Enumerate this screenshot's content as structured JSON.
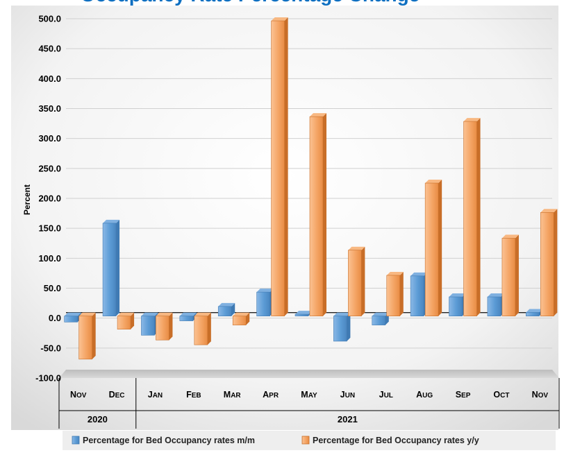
{
  "chart_data": {
    "type": "bar",
    "title": "Occupancy Rate Percentage Change",
    "ylabel": "Percent",
    "xlabel": "",
    "ylim": [
      -100,
      500
    ],
    "yticks": [
      "-100.0",
      "-50.0",
      "0.0",
      "50.0",
      "100.0",
      "150.0",
      "200.0",
      "250.0",
      "300.0",
      "350.0",
      "400.0",
      "450.0",
      "500.0"
    ],
    "categories": [
      "Nov",
      "Dec",
      "Jan",
      "Feb",
      "Mar",
      "Apr",
      "May",
      "Jun",
      "Jul",
      "Aug",
      "Sep",
      "Oct",
      "Nov"
    ],
    "years": [
      {
        "label": "2020",
        "count": 2
      },
      {
        "label": "2021",
        "count": 11
      }
    ],
    "series": [
      {
        "name": "Percentage for Bed Occupancy rates m/m",
        "color": "#5b9bd5",
        "values": [
          -10,
          155,
          -32,
          -8,
          16,
          40,
          3,
          -42,
          -15,
          67,
          32,
          32,
          6
        ]
      },
      {
        "name": "Percentage for Bed Occupancy rates y/y",
        "color": "#f4a464",
        "values": [
          -72,
          -22,
          -40,
          -48,
          -15,
          493,
          333,
          110,
          68,
          222,
          325,
          130,
          173
        ]
      }
    ],
    "grid": true,
    "legend_position": "bottom"
  }
}
